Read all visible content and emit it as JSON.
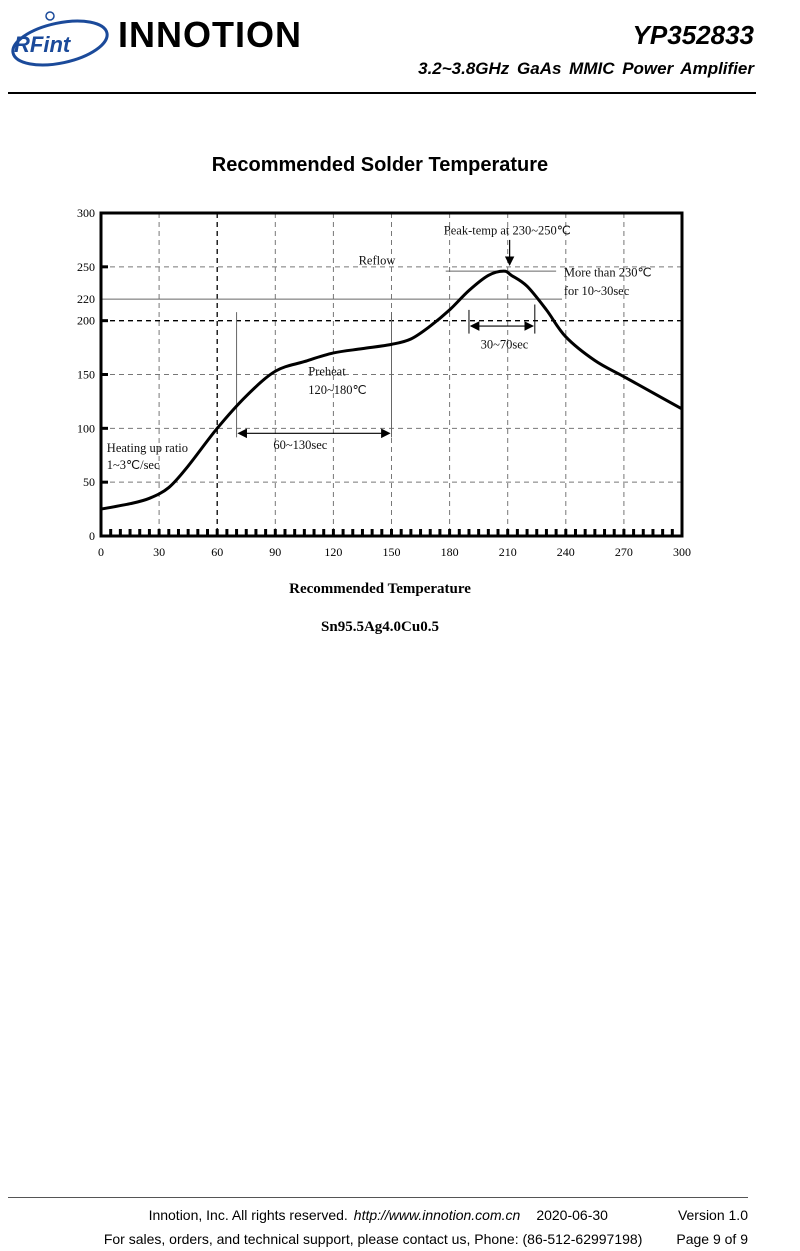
{
  "header": {
    "logo_text": "RFint",
    "brand": "INNOTION",
    "part_number": "YP352833",
    "subtitle": "3.2~3.8GHz GaAs MMIC Power Amplifier"
  },
  "section_title": "Recommended Solder Temperature",
  "chart_data": {
    "type": "line",
    "title": "",
    "xlabel": "",
    "ylabel": "",
    "xlim": [
      0,
      300
    ],
    "ylim": [
      0,
      300
    ],
    "x_ticks": [
      0,
      30,
      60,
      90,
      120,
      150,
      180,
      210,
      240,
      270,
      300
    ],
    "y_ticks": [
      0,
      50,
      100,
      150,
      200,
      220,
      250,
      300
    ],
    "grid": true,
    "series": [
      {
        "x": [
          0,
          15,
          25,
          35,
          45,
          60,
          75,
          90,
          105,
          120,
          135,
          150,
          160,
          170,
          180,
          190,
          200,
          208,
          212,
          220,
          230,
          240,
          255,
          270,
          285,
          300
        ],
        "y": [
          25,
          30,
          35,
          45,
          65,
          100,
          130,
          153,
          162,
          170,
          174,
          178,
          183,
          195,
          210,
          228,
          242,
          246,
          242,
          232,
          210,
          185,
          163,
          148,
          133,
          118
        ]
      }
    ],
    "reference_lines": {
      "horizontal_220": 220,
      "vertical_markers": [
        70,
        150
      ]
    },
    "annotations": [
      {
        "text": "Peak-temp at 230~250℃"
      },
      {
        "text": "Reflow"
      },
      {
        "text": "More than 230℃"
      },
      {
        "text": "for 10~30sec"
      },
      {
        "text": "30~70sec"
      },
      {
        "text": "Preheat"
      },
      {
        "text": "120~180℃"
      },
      {
        "text": "60~130sec"
      },
      {
        "text": "Heating up ratio"
      },
      {
        "text": "1~3℃/sec"
      }
    ]
  },
  "caption_title": "Recommended Temperature",
  "caption_alloy": "Sn95.5Ag4.0Cu0.5",
  "footer": {
    "company": "Innotion, Inc. All rights reserved.",
    "url": "http://www.innotion.com.cn",
    "date": "2020-06-30",
    "version": "Version 1.0",
    "contact": "For sales, orders, and technical support, please contact us, Phone: (86-512-62997198)",
    "page": "Page 9 of 9"
  }
}
